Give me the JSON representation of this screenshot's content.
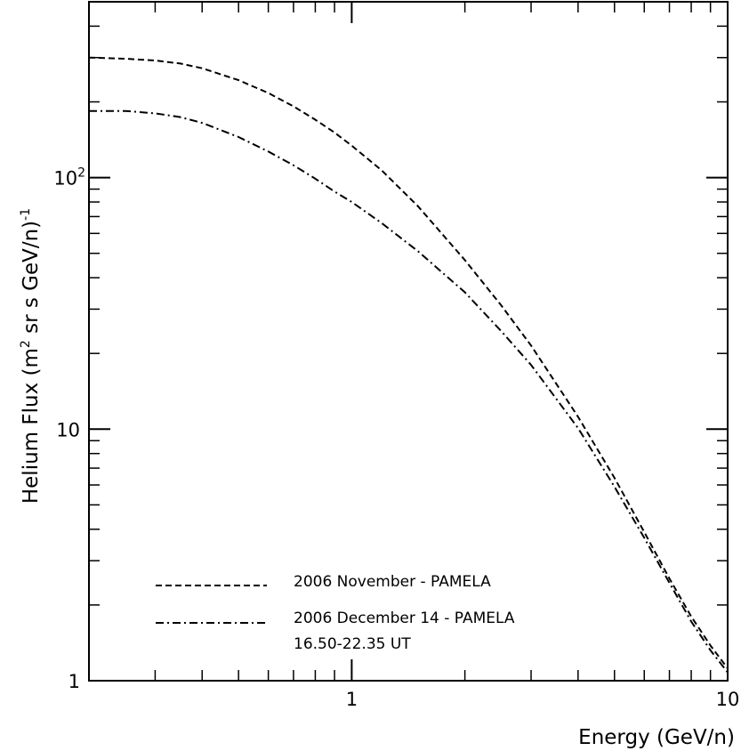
{
  "chart_data": {
    "type": "line",
    "xlabel": "Energy (GeV/n)",
    "ylabel_main": "Helium Flux (m",
    "ylabel_sup1": "2",
    "ylabel_mid": " sr s GeV/n)",
    "ylabel_sup2": "-1",
    "xscale": "log",
    "yscale": "log",
    "xlim": [
      0.2,
      10
    ],
    "ylim": [
      1,
      500
    ],
    "grid": false,
    "legend_placement": "bottom-left",
    "x_ticks": [
      {
        "value": 1,
        "label": "1"
      },
      {
        "value": 10,
        "label": "10"
      }
    ],
    "y_ticks": [
      {
        "value": 1,
        "label": "1",
        "base": "",
        "exp": ""
      },
      {
        "value": 10,
        "label": "10",
        "base": "",
        "exp": ""
      },
      {
        "value": 100,
        "label": "",
        "base": "10",
        "exp": "2"
      }
    ],
    "series": [
      {
        "name": "2006 November - PAMELA",
        "style": "dashed",
        "color": "#000000",
        "x": [
          0.2,
          0.25,
          0.3,
          0.35,
          0.4,
          0.5,
          0.6,
          0.7,
          0.8,
          0.9,
          1.0,
          1.2,
          1.5,
          2.0,
          2.5,
          3.0,
          4.0,
          5.0,
          6.0,
          7.0,
          8.0,
          9.0,
          10.0
        ],
        "y": [
          300,
          297,
          292,
          284,
          272,
          244,
          217,
          192,
          170,
          151,
          134,
          107,
          77,
          47,
          31,
          21.5,
          11.2,
          6.4,
          3.9,
          2.55,
          1.8,
          1.38,
          1.12
        ]
      },
      {
        "name": "2006 December 14 - PAMELA",
        "name_line2": "16.50-22.35 UT",
        "style": "dashdot",
        "color": "#000000",
        "x": [
          0.2,
          0.25,
          0.3,
          0.35,
          0.4,
          0.5,
          0.6,
          0.7,
          0.8,
          0.9,
          1.0,
          1.2,
          1.5,
          2.0,
          2.5,
          3.0,
          4.0,
          5.0,
          6.0,
          7.0,
          8.0,
          9.0,
          10.0
        ],
        "y": [
          184,
          184,
          180,
          174,
          165,
          145,
          127,
          112,
          99,
          88,
          80,
          66,
          51,
          35,
          24.5,
          18,
          10.1,
          5.9,
          3.7,
          2.45,
          1.72,
          1.32,
          1.08
        ]
      }
    ]
  }
}
